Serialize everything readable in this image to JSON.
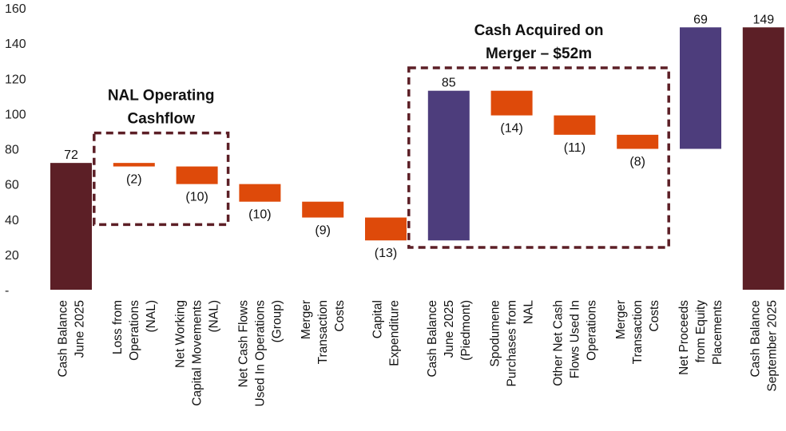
{
  "chart_data": {
    "type": "waterfall",
    "ylim": [
      0,
      160
    ],
    "yticks": [
      {
        "value": 0,
        "label": "-"
      },
      {
        "value": 20,
        "label": "20"
      },
      {
        "value": 40,
        "label": "40"
      },
      {
        "value": 60,
        "label": "60"
      },
      {
        "value": 80,
        "label": "80"
      },
      {
        "value": 100,
        "label": "100"
      },
      {
        "value": 120,
        "label": "120"
      },
      {
        "value": 140,
        "label": "140"
      },
      {
        "value": 160,
        "label": "160"
      }
    ],
    "grid": false,
    "colors": {
      "total": "#5c1f26",
      "negative": "#de4a0a",
      "positive": "#4d3d7c",
      "box": "#5c1f26"
    },
    "items": [
      {
        "category_lines": [
          "Cash Balance",
          "June 2025"
        ],
        "kind": "total",
        "start": 0,
        "end": 72,
        "label": "72"
      },
      {
        "category_lines": [
          "Loss from",
          "Operations",
          "(NAL)"
        ],
        "kind": "negative",
        "start": 72,
        "end": 70,
        "label": "(2)"
      },
      {
        "category_lines": [
          "Net Working",
          "Capital Movements",
          "(NAL)"
        ],
        "kind": "negative",
        "start": 70,
        "end": 60,
        "label": "(10)"
      },
      {
        "category_lines": [
          "Net Cash Flows",
          "Used In Operations",
          "(Group)"
        ],
        "kind": "negative",
        "start": 60,
        "end": 50,
        "label": "(10)"
      },
      {
        "category_lines": [
          "Merger",
          "Transaction",
          "Costs"
        ],
        "kind": "negative",
        "start": 50,
        "end": 41,
        "label": "(9)"
      },
      {
        "category_lines": [
          "Capital",
          "Expenditure"
        ],
        "kind": "negative",
        "start": 41,
        "end": 28,
        "label": "(13)"
      },
      {
        "category_lines": [
          "Cash Balance",
          "June 2025",
          "(Piedmont)"
        ],
        "kind": "positive",
        "start": 28,
        "end": 113,
        "label": "85"
      },
      {
        "category_lines": [
          "Spodumene",
          "Purchases from",
          "NAL"
        ],
        "kind": "negative",
        "start": 113,
        "end": 99,
        "label": "(14)"
      },
      {
        "category_lines": [
          "Other Net Cash",
          "Flows Used In",
          "Operations"
        ],
        "kind": "negative",
        "start": 99,
        "end": 88,
        "label": "(11)"
      },
      {
        "category_lines": [
          "Merger",
          "Transaction",
          "Costs"
        ],
        "kind": "negative",
        "start": 88,
        "end": 80,
        "label": "(8)"
      },
      {
        "category_lines": [
          "Net Proceeds",
          "from Equity",
          "Placements"
        ],
        "kind": "positive",
        "start": 80,
        "end": 149,
        "label": "69"
      },
      {
        "category_lines": [
          "Cash Balance",
          "September 2025"
        ],
        "kind": "total",
        "start": 0,
        "end": 149,
        "label": "149"
      }
    ],
    "annotations": [
      {
        "lines": [
          "NAL Operating",
          "Cashflow"
        ],
        "spans": [
          1,
          2
        ],
        "y_range": [
          37,
          89
        ]
      },
      {
        "lines": [
          "Cash Acquired on",
          "Merger – $52m"
        ],
        "spans": [
          6,
          9
        ],
        "y_range": [
          24,
          126
        ]
      }
    ]
  }
}
